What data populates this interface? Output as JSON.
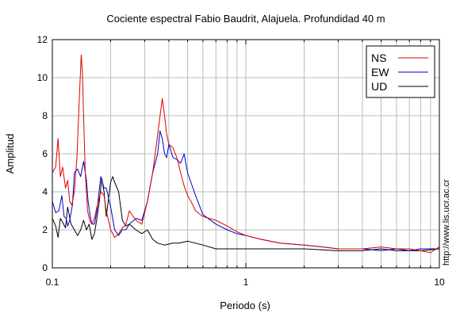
{
  "colors": {
    "ns": "#dd0000",
    "ew": "#0000cc",
    "ud": "#000000",
    "grid": "#bbbbbb",
    "frame": "#000000"
  },
  "side_text": "http://www.lis.ucr.ac.cr",
  "chart_data": {
    "type": "line",
    "title": "Cociente espectral Fabio Baudrit, Alajuela. Profundidad 40 m",
    "xlabel": "Periodo (s)",
    "ylabel": "Amplitud",
    "x_scale": "log",
    "xlim": [
      0.1,
      10
    ],
    "ylim": [
      0,
      12
    ],
    "x_ticks": [
      0.1,
      1,
      10
    ],
    "x_tick_labels": [
      "0.1",
      "1",
      "10"
    ],
    "y_ticks": [
      0,
      2,
      4,
      6,
      8,
      10,
      12
    ],
    "grid": true,
    "legend": {
      "position": "top-right",
      "boxed": true
    },
    "series": [
      {
        "name": "NS",
        "x": [
          0.1,
          0.104,
          0.107,
          0.11,
          0.113,
          0.117,
          0.12,
          0.123,
          0.126,
          0.13,
          0.134,
          0.138,
          0.141,
          0.143,
          0.145,
          0.148,
          0.152,
          0.156,
          0.16,
          0.165,
          0.17,
          0.178,
          0.185,
          0.19,
          0.2,
          0.21,
          0.22,
          0.23,
          0.24,
          0.25,
          0.27,
          0.29,
          0.31,
          0.33,
          0.35,
          0.37,
          0.38,
          0.39,
          0.4,
          0.42,
          0.44,
          0.46,
          0.48,
          0.5,
          0.52,
          0.55,
          0.6,
          0.7,
          0.8,
          0.9,
          1.0,
          1.2,
          1.5,
          2.0,
          2.5,
          3.0,
          4.0,
          5.0,
          6.0,
          7.0,
          8.0,
          9.0,
          10.0
        ],
        "y": [
          5.0,
          5.3,
          6.8,
          4.8,
          5.3,
          4.2,
          4.6,
          3.5,
          3.3,
          4.0,
          5.8,
          9.0,
          11.2,
          10.3,
          8.0,
          5.0,
          3.0,
          2.5,
          2.3,
          2.6,
          3.2,
          4.0,
          3.8,
          3.0,
          2.0,
          1.6,
          1.8,
          2.1,
          2.3,
          3.0,
          2.5,
          2.3,
          3.5,
          5.0,
          7.0,
          8.9,
          8.0,
          7.0,
          6.5,
          6.3,
          5.8,
          5.0,
          4.3,
          3.8,
          3.5,
          3.0,
          2.7,
          2.5,
          2.2,
          1.9,
          1.7,
          1.5,
          1.3,
          1.2,
          1.1,
          1.0,
          1.0,
          1.1,
          1.0,
          1.0,
          0.9,
          0.8,
          1.1
        ]
      },
      {
        "name": "EW",
        "x": [
          0.1,
          0.104,
          0.108,
          0.112,
          0.115,
          0.118,
          0.12,
          0.123,
          0.127,
          0.13,
          0.135,
          0.14,
          0.145,
          0.15,
          0.153,
          0.157,
          0.16,
          0.165,
          0.17,
          0.178,
          0.185,
          0.19,
          0.2,
          0.21,
          0.22,
          0.23,
          0.24,
          0.25,
          0.27,
          0.29,
          0.31,
          0.33,
          0.35,
          0.36,
          0.37,
          0.38,
          0.39,
          0.4,
          0.42,
          0.44,
          0.46,
          0.48,
          0.5,
          0.52,
          0.55,
          0.6,
          0.7,
          0.8,
          0.9,
          1.0,
          1.2,
          1.5,
          2.0,
          2.5,
          3.0,
          4.0,
          5.0,
          6.0,
          7.0,
          8.0,
          9.0,
          10.0
        ],
        "y": [
          3.5,
          2.9,
          3.0,
          3.8,
          2.7,
          2.6,
          2.2,
          2.5,
          3.3,
          5.0,
          5.2,
          4.8,
          5.6,
          4.6,
          3.5,
          2.7,
          2.3,
          2.3,
          3.0,
          4.8,
          4.2,
          4.2,
          3.2,
          2.0,
          1.7,
          2.0,
          2.0,
          2.3,
          2.6,
          2.5,
          3.5,
          5.0,
          6.0,
          7.2,
          6.8,
          6.0,
          5.8,
          6.5,
          5.8,
          5.7,
          5.5,
          6.0,
          5.0,
          4.5,
          3.8,
          2.8,
          2.3,
          2.0,
          1.8,
          1.7,
          1.5,
          1.3,
          1.2,
          1.1,
          1.0,
          1.0,
          0.9,
          1.0,
          0.9,
          1.0,
          1.0,
          1.0
        ]
      },
      {
        "name": "UD",
        "x": [
          0.1,
          0.104,
          0.107,
          0.11,
          0.113,
          0.117,
          0.12,
          0.125,
          0.13,
          0.135,
          0.14,
          0.145,
          0.15,
          0.155,
          0.16,
          0.165,
          0.17,
          0.175,
          0.18,
          0.185,
          0.19,
          0.2,
          0.205,
          0.21,
          0.22,
          0.23,
          0.24,
          0.25,
          0.27,
          0.29,
          0.31,
          0.33,
          0.35,
          0.38,
          0.42,
          0.45,
          0.5,
          0.55,
          0.6,
          0.7,
          0.8,
          1.0,
          1.2,
          1.5,
          2.0,
          3.0,
          4.0,
          5.0,
          6.0,
          7.0,
          8.0,
          10.0
        ],
        "y": [
          2.6,
          2.2,
          1.6,
          2.6,
          2.4,
          2.1,
          3.2,
          2.3,
          2.0,
          1.7,
          2.0,
          2.5,
          2.0,
          2.3,
          1.5,
          1.8,
          2.6,
          3.5,
          4.7,
          4.0,
          2.7,
          4.5,
          4.8,
          4.5,
          4.0,
          2.5,
          2.2,
          2.3,
          2.0,
          1.8,
          2.0,
          1.5,
          1.3,
          1.2,
          1.3,
          1.3,
          1.4,
          1.3,
          1.2,
          1.0,
          1.0,
          1.0,
          1.0,
          1.0,
          1.0,
          0.9,
          0.9,
          1.0,
          0.9,
          0.9,
          0.9,
          1.0
        ]
      }
    ]
  }
}
